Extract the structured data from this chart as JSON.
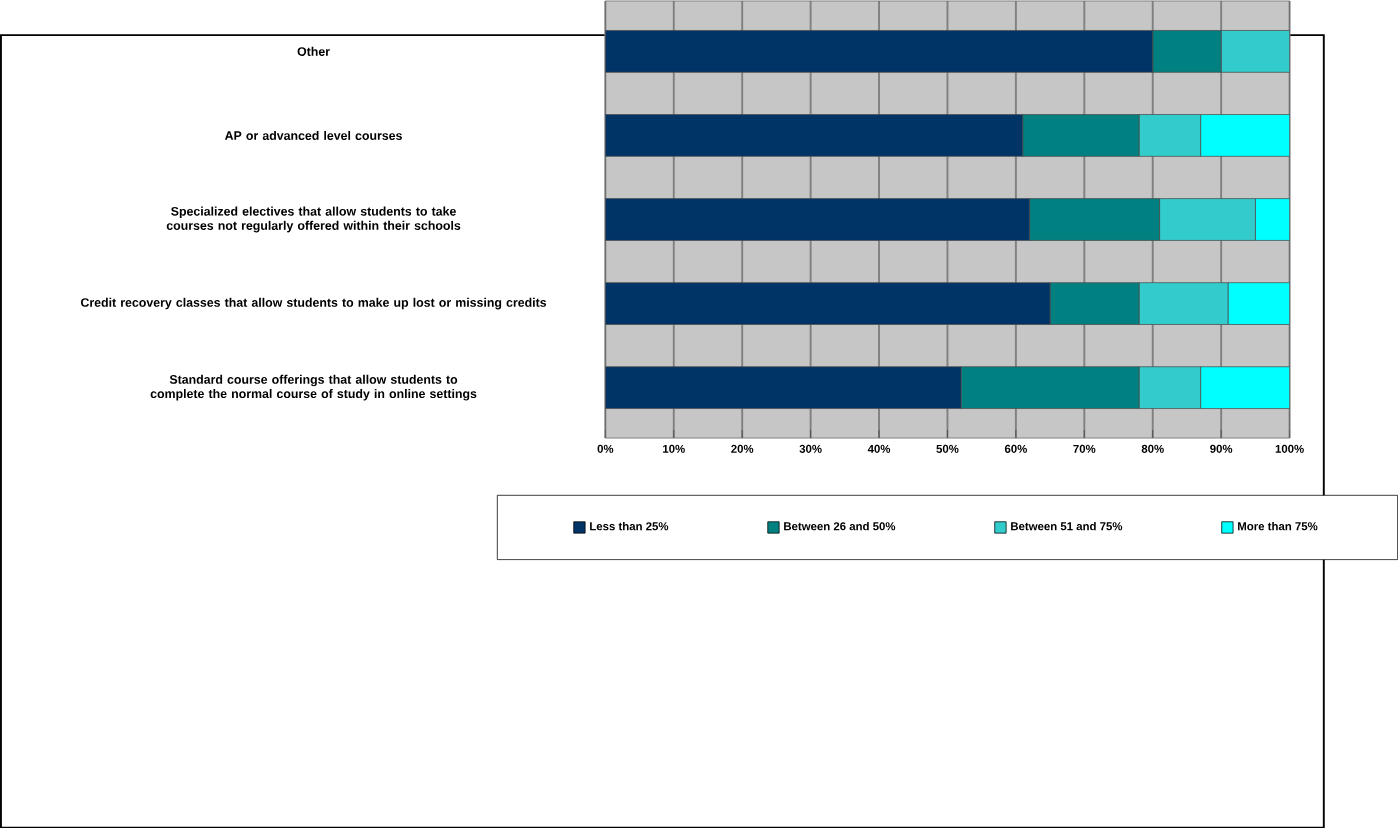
{
  "chart_data": {
    "type": "bar",
    "orientation": "horizontal",
    "stacked": true,
    "categories": [
      "Other",
      "AP or advanced level courses",
      "Specialized electives that allow students to take courses not regularly offered within their schools",
      "Credit recovery classes that allow students to make up lost or missing credits",
      "Standard course offerings that allow students to complete the normal course of study in online settings"
    ],
    "series": [
      {
        "name": "Less than 25%",
        "color": "#003366",
        "values": [
          80,
          61,
          62,
          65,
          52
        ]
      },
      {
        "name": "Between 26 and 50%",
        "color": "#008080",
        "values": [
          10,
          17,
          19,
          13,
          26
        ]
      },
      {
        "name": "Between 51 and 75%",
        "color": "#33cccc",
        "values": [
          10,
          9,
          14,
          13,
          9
        ]
      },
      {
        "name": "More than 75%",
        "color": "#00ffff",
        "values": [
          0,
          13,
          5,
          9,
          13
        ]
      }
    ],
    "xlim": [
      0,
      100
    ],
    "xticks": [
      {
        "value": 0,
        "label": "0%"
      },
      {
        "value": 10,
        "label": "10%"
      },
      {
        "value": 20,
        "label": "20%"
      },
      {
        "value": 30,
        "label": "30%"
      },
      {
        "value": 40,
        "label": "40%"
      },
      {
        "value": 50,
        "label": "50%"
      },
      {
        "value": 60,
        "label": "60%"
      },
      {
        "value": 70,
        "label": "70%"
      },
      {
        "value": 80,
        "label": "80%"
      },
      {
        "value": 90,
        "label": "90%"
      },
      {
        "value": 100,
        "label": "100%"
      }
    ],
    "grid": "x",
    "legend": "bottom"
  }
}
